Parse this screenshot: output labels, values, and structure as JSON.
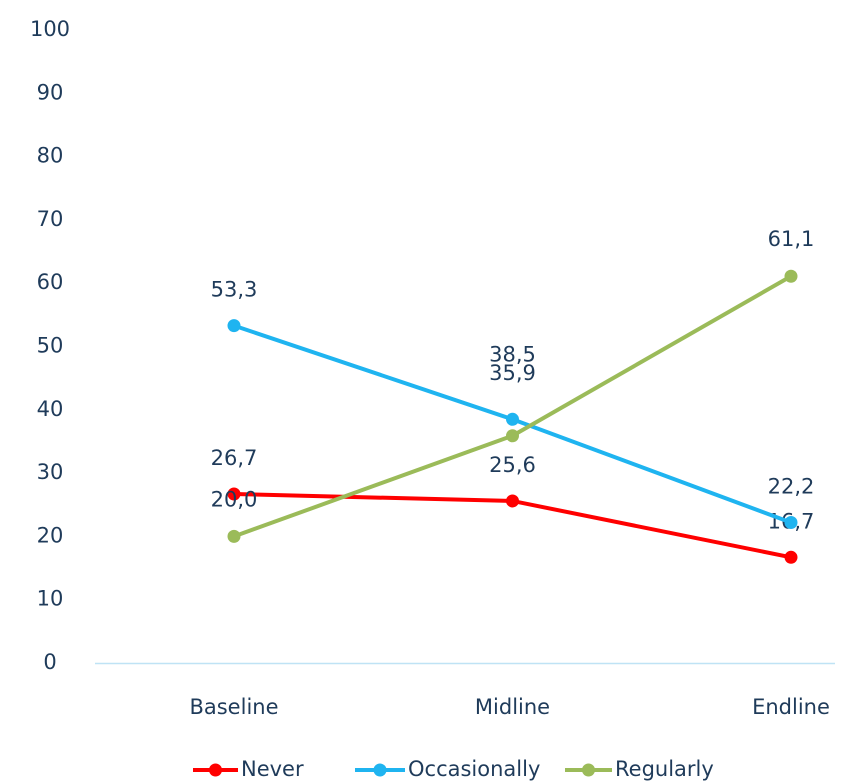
{
  "chart_data": {
    "type": "line",
    "categories": [
      "Baseline",
      "Midline",
      "Endline"
    ],
    "series": [
      {
        "name": "Never",
        "color": "#ff0000",
        "values": [
          26.7,
          25.6,
          16.7
        ],
        "value_labels": [
          "26,7",
          "25,6",
          "16,7"
        ]
      },
      {
        "name": "Occasionally",
        "color": "#1fb4f0",
        "values": [
          53.3,
          38.5,
          22.2
        ],
        "value_labels": [
          "53,3",
          "38,5",
          "22,2"
        ]
      },
      {
        "name": "Regularly",
        "color": "#9bbb59",
        "values": [
          20.0,
          35.9,
          61.1
        ],
        "value_labels": [
          "20,0",
          "35,9",
          "61,1"
        ]
      }
    ],
    "ylim": [
      0,
      100
    ],
    "yticks": [
      0,
      10,
      20,
      30,
      40,
      50,
      60,
      70,
      80,
      90,
      100
    ],
    "grid": false,
    "legend": "bottom"
  }
}
